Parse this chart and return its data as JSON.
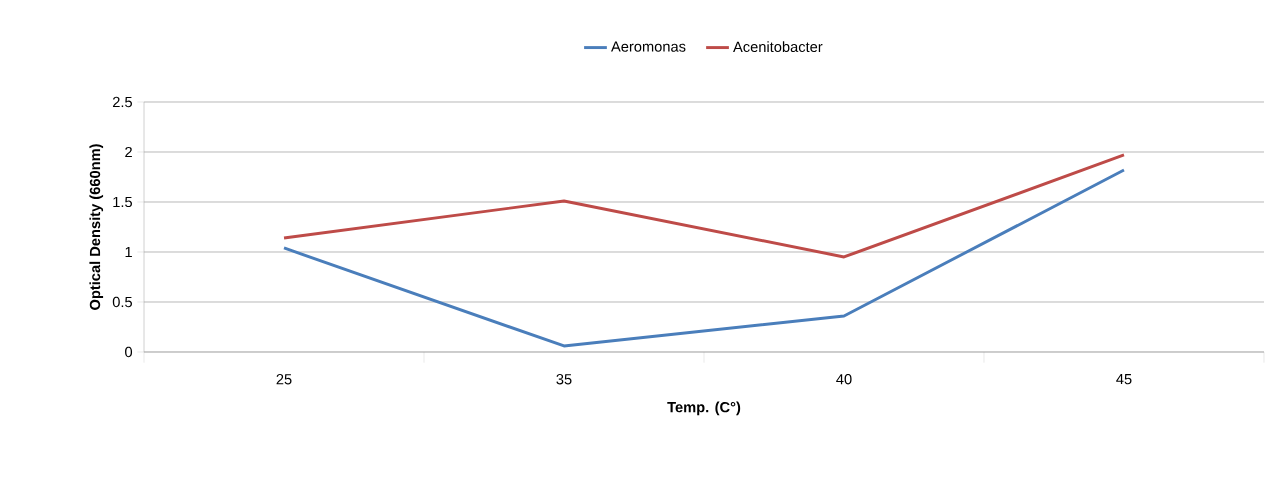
{
  "chart_data": {
    "type": "line",
    "xlabel": "Temp. (C°)",
    "ylabel": "Optical Density (660nm)",
    "categories": [
      "25",
      "35",
      "40",
      "45"
    ],
    "series": [
      {
        "name": "Aeromonas",
        "color": "#4a7ebb",
        "values": [
          1.04,
          0.06,
          0.36,
          1.82
        ]
      },
      {
        "name": "Acenitobacter",
        "color": "#be4b48",
        "values": [
          1.14,
          1.51,
          0.95,
          1.97
        ]
      }
    ],
    "ylim": [
      0,
      2.5
    ],
    "yticks": [
      0,
      0.5,
      1,
      1.5,
      2,
      2.5
    ],
    "grid": "y",
    "legend": "top",
    "marker": "none",
    "line_style": "solid"
  }
}
